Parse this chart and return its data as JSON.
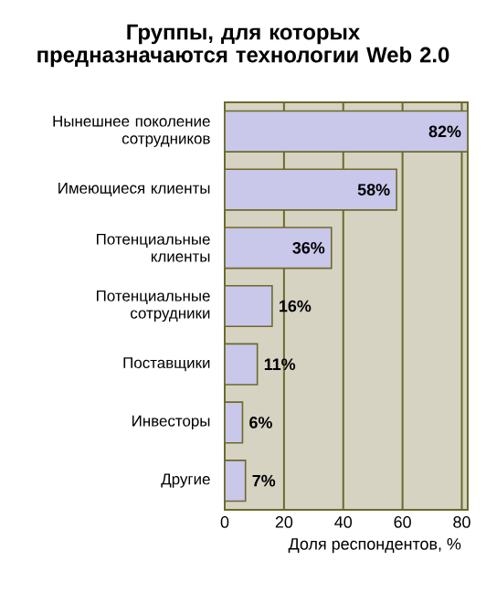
{
  "chart_data": {
    "type": "bar",
    "orientation": "horizontal",
    "title": "Группы, для которых предназначаются технологии Web 2.0",
    "categories": [
      "Нынешнее поколение сотрудников",
      "Имеющиеся клиенты",
      "Потенциальные клиенты",
      "Потенциальные сотрудники",
      "Поставщики",
      "Инвесторы",
      "Другие"
    ],
    "values": [
      82,
      58,
      36,
      16,
      11,
      6,
      7
    ],
    "value_labels": [
      "82%",
      "58%",
      "36%",
      "16%",
      "11%",
      "6%",
      "7%"
    ],
    "color": "#c9c7ea",
    "xlabel": "Доля респондентов, %",
    "xlim": [
      0,
      82
    ],
    "xticks": [
      0,
      20,
      40,
      60,
      80
    ],
    "grid": "x"
  }
}
